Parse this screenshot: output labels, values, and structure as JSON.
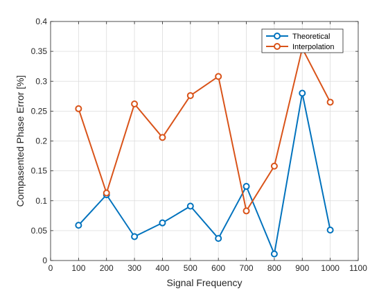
{
  "chart_data": {
    "type": "line",
    "title": "",
    "xlabel": "Signal Frequency",
    "ylabel": "Compasented Phase Error [%]",
    "xlim": [
      0,
      1100
    ],
    "ylim": [
      0,
      0.4
    ],
    "xticks": [
      0,
      100,
      200,
      300,
      400,
      500,
      600,
      700,
      800,
      900,
      1000,
      1100
    ],
    "xtick_labels": [
      "0",
      "100",
      "200",
      "300",
      "400",
      "500",
      "600",
      "700",
      "800",
      "900",
      "1000",
      "1100"
    ],
    "yticks": [
      0,
      0.05,
      0.1,
      0.15,
      0.2,
      0.25,
      0.3,
      0.35,
      0.4
    ],
    "ytick_labels": [
      "0",
      "0.05",
      "0.1",
      "0.15",
      "0.2",
      "0.25",
      "0.3",
      "0.35",
      "0.4"
    ],
    "grid": true,
    "legend_position": "top-right",
    "x": [
      100,
      200,
      300,
      400,
      500,
      600,
      700,
      800,
      900,
      1000
    ],
    "series": [
      {
        "name": "Theoretical",
        "color": "#0072BD",
        "values": [
          0.059,
          0.11,
          0.04,
          0.063,
          0.091,
          0.037,
          0.124,
          0.011,
          0.28,
          0.051
        ]
      },
      {
        "name": "Interpolation",
        "color": "#D95319",
        "values": [
          0.254,
          0.113,
          0.262,
          0.206,
          0.276,
          0.308,
          0.083,
          0.158,
          0.355,
          0.265
        ]
      }
    ]
  }
}
